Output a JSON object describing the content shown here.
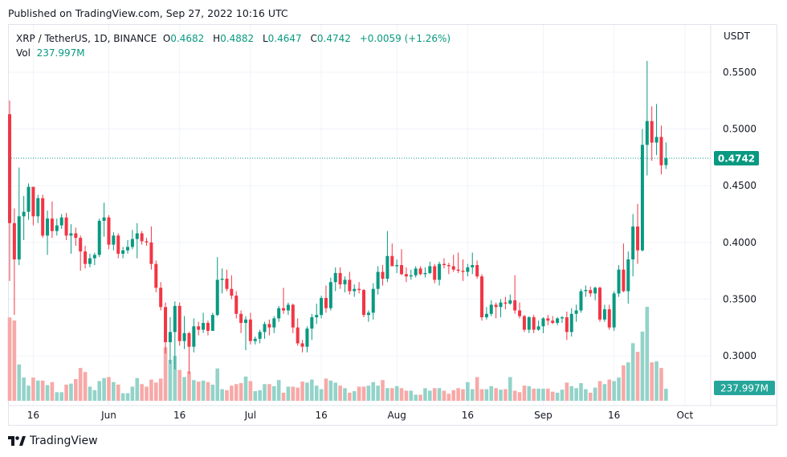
{
  "header": {
    "published": "Published on TradingView.com, Sep 27, 2022 10:16 UTC"
  },
  "legend": {
    "symbol": "XRP / TetherUS, 1D, BINANCE",
    "o_label": "O",
    "o": "0.4682",
    "h_label": "H",
    "h": "0.4882",
    "l_label": "L",
    "l": "0.4647",
    "c_label": "C",
    "c": "0.4742",
    "change": "+0.0059 (+1.26%)",
    "vol_label": "Vol",
    "vol": "237.997M"
  },
  "axis": {
    "currency": "USDT",
    "last_price_label": "0.4742",
    "last_volume_label": "237.997M"
  },
  "footer": {
    "brand": "TradingView"
  },
  "colors": {
    "up": "#089981",
    "down": "#f23645",
    "up_volume": "#93d3c9",
    "down_volume": "#f7a9a7",
    "grid": "#f0f3fa"
  },
  "chart_data": {
    "type": "candlestick",
    "title": "XRP / TetherUS, 1D, BINANCE",
    "ylabel": "USDT",
    "ylim": [
      0.27,
      0.59
    ],
    "grid": true,
    "y_ticks": [
      "0.5500",
      "0.5000",
      "0.4500",
      "0.4000",
      "0.3500",
      "0.3000"
    ],
    "x_ticks": [
      {
        "label": "16",
        "date": "May 16"
      },
      {
        "label": "Jun",
        "date": "Jun 1"
      },
      {
        "label": "16",
        "date": "Jun 16"
      },
      {
        "label": "Jul",
        "date": "Jul 1"
      },
      {
        "label": "16",
        "date": "Jul 16"
      },
      {
        "label": "Aug",
        "date": "Aug 1"
      },
      {
        "label": "16",
        "date": "Aug 16"
      },
      {
        "label": "Sep",
        "date": "Sep 1"
      },
      {
        "label": "16",
        "date": "Sep 16"
      },
      {
        "label": "Oct",
        "date": "Oct 1"
      }
    ],
    "first_date": "May 11",
    "columns": [
      "open",
      "high",
      "low",
      "close",
      "volume_M"
    ],
    "candles": [
      [
        0.513,
        0.525,
        0.366,
        0.417,
        1650
      ],
      [
        0.417,
        0.43,
        0.336,
        0.385,
        1590
      ],
      [
        0.385,
        0.466,
        0.38,
        0.423,
        720
      ],
      [
        0.423,
        0.441,
        0.402,
        0.427,
        460
      ],
      [
        0.427,
        0.452,
        0.42,
        0.449,
        300
      ],
      [
        0.449,
        0.449,
        0.415,
        0.423,
        460
      ],
      [
        0.423,
        0.442,
        0.417,
        0.439,
        400
      ],
      [
        0.439,
        0.442,
        0.404,
        0.406,
        400
      ],
      [
        0.406,
        0.428,
        0.389,
        0.421,
        310
      ],
      [
        0.421,
        0.436,
        0.404,
        0.41,
        370
      ],
      [
        0.41,
        0.421,
        0.406,
        0.415,
        170
      ],
      [
        0.415,
        0.425,
        0.412,
        0.422,
        170
      ],
      [
        0.422,
        0.426,
        0.402,
        0.406,
        320
      ],
      [
        0.406,
        0.416,
        0.39,
        0.408,
        340
      ],
      [
        0.408,
        0.413,
        0.397,
        0.404,
        430
      ],
      [
        0.404,
        0.406,
        0.375,
        0.392,
        650
      ],
      [
        0.392,
        0.397,
        0.377,
        0.381,
        570
      ],
      [
        0.381,
        0.39,
        0.378,
        0.386,
        280
      ],
      [
        0.386,
        0.391,
        0.38,
        0.389,
        210
      ],
      [
        0.389,
        0.421,
        0.387,
        0.419,
        390
      ],
      [
        0.419,
        0.435,
        0.405,
        0.422,
        450
      ],
      [
        0.422,
        0.424,
        0.394,
        0.398,
        470
      ],
      [
        0.398,
        0.409,
        0.393,
        0.406,
        370
      ],
      [
        0.406,
        0.408,
        0.386,
        0.39,
        320
      ],
      [
        0.39,
        0.396,
        0.386,
        0.393,
        150
      ],
      [
        0.393,
        0.402,
        0.39,
        0.396,
        150
      ],
      [
        0.396,
        0.411,
        0.394,
        0.403,
        280
      ],
      [
        0.403,
        0.417,
        0.386,
        0.408,
        450
      ],
      [
        0.408,
        0.41,
        0.398,
        0.401,
        330
      ],
      [
        0.401,
        0.404,
        0.397,
        0.4,
        280
      ],
      [
        0.4,
        0.414,
        0.376,
        0.381,
        420
      ],
      [
        0.381,
        0.384,
        0.356,
        0.36,
        360
      ],
      [
        0.36,
        0.365,
        0.34,
        0.343,
        440
      ],
      [
        0.343,
        0.347,
        0.302,
        0.312,
        1060
      ],
      [
        0.312,
        0.334,
        0.293,
        0.321,
        810
      ],
      [
        0.321,
        0.348,
        0.288,
        0.344,
        890
      ],
      [
        0.344,
        0.347,
        0.309,
        0.313,
        610
      ],
      [
        0.313,
        0.335,
        0.306,
        0.32,
        470
      ],
      [
        0.32,
        0.321,
        0.284,
        0.308,
        580
      ],
      [
        0.308,
        0.333,
        0.303,
        0.326,
        410
      ],
      [
        0.326,
        0.33,
        0.318,
        0.323,
        380
      ],
      [
        0.323,
        0.338,
        0.32,
        0.329,
        400
      ],
      [
        0.329,
        0.331,
        0.318,
        0.322,
        370
      ],
      [
        0.322,
        0.338,
        0.322,
        0.336,
        320
      ],
      [
        0.336,
        0.387,
        0.335,
        0.367,
        640
      ],
      [
        0.367,
        0.377,
        0.355,
        0.368,
        230
      ],
      [
        0.368,
        0.376,
        0.357,
        0.359,
        210
      ],
      [
        0.359,
        0.371,
        0.35,
        0.353,
        300
      ],
      [
        0.353,
        0.357,
        0.333,
        0.337,
        330
      ],
      [
        0.337,
        0.34,
        0.32,
        0.329,
        350
      ],
      [
        0.329,
        0.335,
        0.305,
        0.332,
        480
      ],
      [
        0.332,
        0.338,
        0.31,
        0.313,
        390
      ],
      [
        0.313,
        0.317,
        0.31,
        0.315,
        190
      ],
      [
        0.315,
        0.323,
        0.311,
        0.321,
        210
      ],
      [
        0.321,
        0.33,
        0.315,
        0.328,
        330
      ],
      [
        0.328,
        0.332,
        0.318,
        0.325,
        330
      ],
      [
        0.325,
        0.335,
        0.32,
        0.333,
        290
      ],
      [
        0.333,
        0.344,
        0.33,
        0.342,
        410
      ],
      [
        0.342,
        0.36,
        0.337,
        0.34,
        160
      ],
      [
        0.34,
        0.347,
        0.336,
        0.345,
        280
      ],
      [
        0.345,
        0.346,
        0.32,
        0.325,
        280
      ],
      [
        0.325,
        0.333,
        0.309,
        0.311,
        260
      ],
      [
        0.311,
        0.314,
        0.303,
        0.308,
        380
      ],
      [
        0.308,
        0.326,
        0.303,
        0.324,
        360
      ],
      [
        0.324,
        0.337,
        0.314,
        0.334,
        420
      ],
      [
        0.334,
        0.346,
        0.328,
        0.336,
        300
      ],
      [
        0.336,
        0.353,
        0.333,
        0.351,
        230
      ],
      [
        0.351,
        0.362,
        0.338,
        0.342,
        440
      ],
      [
        0.342,
        0.369,
        0.34,
        0.365,
        400
      ],
      [
        0.365,
        0.378,
        0.357,
        0.373,
        360
      ],
      [
        0.373,
        0.378,
        0.359,
        0.363,
        300
      ],
      [
        0.363,
        0.37,
        0.356,
        0.367,
        250
      ],
      [
        0.367,
        0.374,
        0.354,
        0.357,
        160
      ],
      [
        0.357,
        0.363,
        0.352,
        0.359,
        190
      ],
      [
        0.359,
        0.365,
        0.355,
        0.358,
        280
      ],
      [
        0.358,
        0.359,
        0.334,
        0.336,
        280
      ],
      [
        0.336,
        0.34,
        0.33,
        0.338,
        300
      ],
      [
        0.338,
        0.364,
        0.332,
        0.359,
        370
      ],
      [
        0.359,
        0.379,
        0.354,
        0.374,
        300
      ],
      [
        0.374,
        0.38,
        0.362,
        0.368,
        410
      ],
      [
        0.368,
        0.41,
        0.365,
        0.388,
        250
      ],
      [
        0.388,
        0.399,
        0.379,
        0.379,
        250
      ],
      [
        0.379,
        0.385,
        0.373,
        0.38,
        290
      ],
      [
        0.38,
        0.394,
        0.371,
        0.372,
        250
      ],
      [
        0.372,
        0.378,
        0.365,
        0.37,
        200
      ],
      [
        0.37,
        0.376,
        0.367,
        0.371,
        200
      ],
      [
        0.371,
        0.379,
        0.369,
        0.377,
        120
      ],
      [
        0.377,
        0.379,
        0.371,
        0.372,
        120
      ],
      [
        0.372,
        0.378,
        0.369,
        0.373,
        250
      ],
      [
        0.373,
        0.383,
        0.372,
        0.379,
        200
      ],
      [
        0.379,
        0.381,
        0.364,
        0.367,
        250
      ],
      [
        0.367,
        0.383,
        0.362,
        0.381,
        250
      ],
      [
        0.381,
        0.386,
        0.377,
        0.38,
        200
      ],
      [
        0.38,
        0.382,
        0.372,
        0.379,
        140
      ],
      [
        0.379,
        0.389,
        0.374,
        0.376,
        210
      ],
      [
        0.376,
        0.391,
        0.373,
        0.375,
        250
      ],
      [
        0.375,
        0.385,
        0.366,
        0.374,
        230
      ],
      [
        0.374,
        0.381,
        0.37,
        0.378,
        370
      ],
      [
        0.378,
        0.391,
        0.372,
        0.38,
        230
      ],
      [
        0.38,
        0.384,
        0.368,
        0.37,
        470
      ],
      [
        0.37,
        0.372,
        0.331,
        0.334,
        230
      ],
      [
        0.334,
        0.343,
        0.332,
        0.337,
        230
      ],
      [
        0.337,
        0.349,
        0.335,
        0.345,
        290
      ],
      [
        0.345,
        0.347,
        0.333,
        0.343,
        250
      ],
      [
        0.343,
        0.35,
        0.334,
        0.347,
        220
      ],
      [
        0.347,
        0.352,
        0.341,
        0.346,
        230
      ],
      [
        0.346,
        0.354,
        0.345,
        0.349,
        470
      ],
      [
        0.349,
        0.371,
        0.337,
        0.34,
        200
      ],
      [
        0.34,
        0.347,
        0.333,
        0.335,
        170
      ],
      [
        0.335,
        0.336,
        0.321,
        0.323,
        300
      ],
      [
        0.323,
        0.335,
        0.32,
        0.334,
        290
      ],
      [
        0.334,
        0.336,
        0.32,
        0.323,
        240
      ],
      [
        0.323,
        0.331,
        0.322,
        0.326,
        240
      ],
      [
        0.326,
        0.334,
        0.32,
        0.333,
        240
      ],
      [
        0.333,
        0.336,
        0.327,
        0.331,
        240
      ],
      [
        0.331,
        0.335,
        0.328,
        0.329,
        180
      ],
      [
        0.329,
        0.334,
        0.327,
        0.333,
        160
      ],
      [
        0.333,
        0.335,
        0.329,
        0.334,
        220
      ],
      [
        0.334,
        0.339,
        0.314,
        0.321,
        360
      ],
      [
        0.321,
        0.342,
        0.317,
        0.337,
        290
      ],
      [
        0.337,
        0.345,
        0.33,
        0.34,
        250
      ],
      [
        0.34,
        0.359,
        0.338,
        0.357,
        350
      ],
      [
        0.357,
        0.362,
        0.352,
        0.358,
        230
      ],
      [
        0.358,
        0.361,
        0.352,
        0.355,
        160
      ],
      [
        0.355,
        0.361,
        0.349,
        0.36,
        260
      ],
      [
        0.36,
        0.361,
        0.33,
        0.332,
        390
      ],
      [
        0.332,
        0.345,
        0.33,
        0.341,
        330
      ],
      [
        0.341,
        0.345,
        0.323,
        0.325,
        420
      ],
      [
        0.325,
        0.357,
        0.322,
        0.355,
        390
      ],
      [
        0.355,
        0.38,
        0.352,
        0.376,
        460
      ],
      [
        0.376,
        0.399,
        0.356,
        0.357,
        700
      ],
      [
        0.357,
        0.392,
        0.346,
        0.385,
        760
      ],
      [
        0.385,
        0.425,
        0.37,
        0.414,
        1140
      ],
      [
        0.414,
        0.434,
        0.381,
        0.393,
        970
      ],
      [
        0.393,
        0.5,
        0.392,
        0.486,
        1370
      ],
      [
        0.486,
        0.56,
        0.459,
        0.507,
        1860
      ],
      [
        0.507,
        0.52,
        0.472,
        0.488,
        760
      ],
      [
        0.488,
        0.522,
        0.477,
        0.493,
        780
      ],
      [
        0.493,
        0.503,
        0.46,
        0.468,
        650
      ],
      [
        0.4682,
        0.4882,
        0.4647,
        0.4742,
        237.997
      ]
    ],
    "last_price": 0.4742
  }
}
